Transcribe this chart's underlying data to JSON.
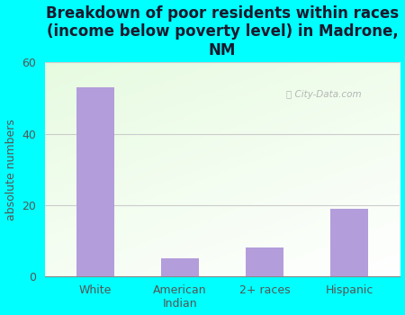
{
  "title": "Breakdown of poor residents within races\n(income below poverty level) in Madrone,\nNM",
  "categories": [
    "White",
    "American\nIndian",
    "2+ races",
    "Hispanic"
  ],
  "values": [
    53,
    5,
    8,
    19
  ],
  "bar_color": "#b39ddb",
  "ylabel": "absolute numbers",
  "ylim": [
    0,
    60
  ],
  "yticks": [
    0,
    20,
    40,
    60
  ],
  "background_color": "#00ffff",
  "title_fontsize": 12,
  "title_color": "#1a1a2e",
  "axis_label_fontsize": 9,
  "ylabel_color": "#555555",
  "tick_fontsize": 9,
  "tick_color": "#555555",
  "watermark": "City-Data.com",
  "grid_color": "#cccccc",
  "bar_width": 0.45
}
